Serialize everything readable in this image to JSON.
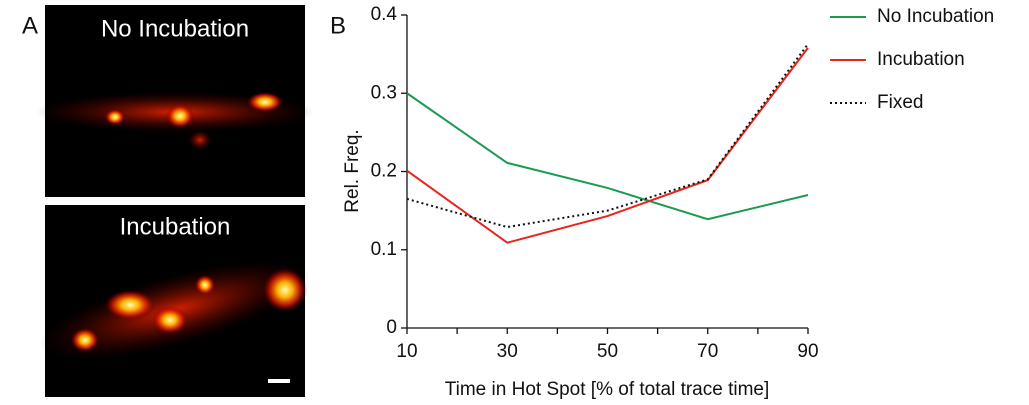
{
  "panel_a": {
    "label": "A",
    "images": [
      {
        "title": "No Incubation"
      },
      {
        "title": "Incubation"
      }
    ]
  },
  "chart_data": {
    "type": "line",
    "panel_label": "B",
    "x_label": "Time in Hot Spot [% of total trace time]",
    "y_label": "Rel. Freq.",
    "x": [
      10,
      30,
      50,
      70,
      90
    ],
    "series": [
      {
        "name": "No Incubation",
        "color": "#1b9a52",
        "dash": "solid",
        "values": [
          0.3,
          0.211,
          0.179,
          0.139,
          0.17
        ]
      },
      {
        "name": "Incubation",
        "color": "#e8241c",
        "dash": "solid",
        "values": [
          0.201,
          0.109,
          0.143,
          0.189,
          0.358
        ]
      },
      {
        "name": "Fixed",
        "color": "#111111",
        "dash": "dotted",
        "values": [
          0.165,
          0.129,
          0.15,
          0.19,
          0.363
        ]
      }
    ],
    "xlim": [
      10,
      90
    ],
    "xticks": [
      10,
      30,
      50,
      70,
      90
    ],
    "xminorticks": [
      20,
      40,
      60,
      80
    ],
    "ylim": [
      0,
      0.4
    ],
    "yticks": [
      0,
      0.1,
      0.2,
      0.3,
      0.4
    ],
    "legend": "top-right"
  }
}
